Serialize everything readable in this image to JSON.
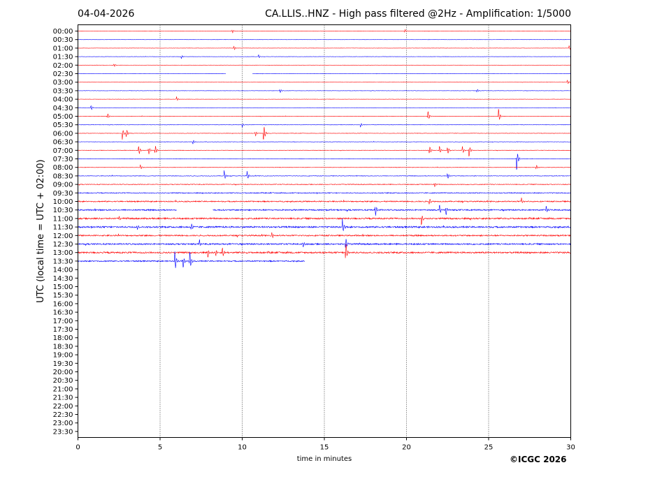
{
  "header": {
    "date": "04-04-2026",
    "title": "CA.LLIS..HNZ - High pass filtered @2Hz - Amplification: 1/5000"
  },
  "copyright": "©ICGC 2026",
  "colors": {
    "red": "#ff0000",
    "blue": "#0000ff",
    "grid": "#000000"
  },
  "chart_data": {
    "type": "line",
    "title": "CA.LLIS..HNZ - High pass filtered @2Hz - Amplification: 1/5000",
    "xlabel": "time in minutes",
    "ylabel": "UTC (local time = UTC + 02:00)",
    "xlim": [
      0,
      30
    ],
    "x_ticks": [
      0,
      5,
      10,
      15,
      20,
      25,
      30
    ],
    "x_gridlines": [
      5,
      10,
      15,
      20,
      25
    ],
    "row_labels": [
      "00:00",
      "00:30",
      "01:00",
      "01:30",
      "02:00",
      "02:30",
      "03:00",
      "03:30",
      "04:00",
      "04:30",
      "05:00",
      "05:30",
      "06:00",
      "06:30",
      "07:00",
      "07:30",
      "08:00",
      "08:30",
      "09:00",
      "09:30",
      "10:00",
      "10:30",
      "11:00",
      "11:30",
      "12:00",
      "12:30",
      "13:00",
      "13:30",
      "14:00",
      "14:30",
      "15:00",
      "15:30",
      "16:00",
      "16:30",
      "17:00",
      "17:30",
      "18:00",
      "18:30",
      "19:00",
      "19:30",
      "20:00",
      "20:30",
      "21:00",
      "21:30",
      "22:00",
      "22:30",
      "23:00",
      "23:30"
    ],
    "recorded_rows": 28,
    "last_row_end_minute": 13.8,
    "gaps": [
      {
        "row": "02:30",
        "from_minute": 9.0,
        "to_minute": 10.6
      },
      {
        "row": "10:30",
        "from_minute": 6.0,
        "to_minute": 8.2
      }
    ],
    "row_noise": [
      0.3,
      0.3,
      0.3,
      0.3,
      0.3,
      0.3,
      0.3,
      0.35,
      0.3,
      0.3,
      0.4,
      0.4,
      0.45,
      0.4,
      0.5,
      0.4,
      0.5,
      0.6,
      0.8,
      1.0,
      1.3,
      1.5,
      1.7,
      1.8,
      1.5,
      1.6,
      1.8,
      1.4
    ],
    "events": [
      {
        "row": "00:00",
        "minute": 9.4,
        "amp": 0.25
      },
      {
        "row": "00:00",
        "minute": 19.9,
        "amp": 0.25
      },
      {
        "row": "01:00",
        "minute": 9.5,
        "amp": 0.3
      },
      {
        "row": "01:00",
        "minute": 29.9,
        "amp": 0.3
      },
      {
        "row": "01:30",
        "minute": 6.3,
        "amp": 0.25
      },
      {
        "row": "01:30",
        "minute": 11.0,
        "amp": 0.25
      },
      {
        "row": "02:00",
        "minute": 2.2,
        "amp": 0.25
      },
      {
        "row": "03:00",
        "minute": 29.8,
        "amp": 0.3
      },
      {
        "row": "03:30",
        "minute": 12.3,
        "amp": 0.3
      },
      {
        "row": "03:30",
        "minute": 24.3,
        "amp": 0.25
      },
      {
        "row": "04:00",
        "minute": 6.0,
        "amp": 0.3
      },
      {
        "row": "04:30",
        "minute": 0.8,
        "amp": 0.35
      },
      {
        "row": "05:00",
        "minute": 1.8,
        "amp": 0.4
      },
      {
        "row": "05:00",
        "minute": 21.3,
        "amp": 0.75
      },
      {
        "row": "05:00",
        "minute": 25.6,
        "amp": 1.0
      },
      {
        "row": "05:30",
        "minute": 10.0,
        "amp": 0.3
      },
      {
        "row": "05:30",
        "minute": 17.2,
        "amp": 0.3
      },
      {
        "row": "06:00",
        "minute": 2.7,
        "amp": 0.75
      },
      {
        "row": "06:00",
        "minute": 2.95,
        "amp": 0.6
      },
      {
        "row": "06:00",
        "minute": 11.3,
        "amp": 1.3
      },
      {
        "row": "06:00",
        "minute": 10.8,
        "amp": 0.4
      },
      {
        "row": "06:30",
        "minute": 7.0,
        "amp": 0.3
      },
      {
        "row": "07:00",
        "minute": 3.7,
        "amp": 0.7
      },
      {
        "row": "07:00",
        "minute": 4.3,
        "amp": 0.6
      },
      {
        "row": "07:00",
        "minute": 4.7,
        "amp": 0.7
      },
      {
        "row": "07:00",
        "minute": 21.4,
        "amp": 0.65
      },
      {
        "row": "07:00",
        "minute": 22.0,
        "amp": 0.6
      },
      {
        "row": "07:00",
        "minute": 22.5,
        "amp": 0.6
      },
      {
        "row": "07:00",
        "minute": 23.4,
        "amp": 0.5
      },
      {
        "row": "07:00",
        "minute": 23.8,
        "amp": 0.9
      },
      {
        "row": "07:30",
        "minute": 26.7,
        "amp": 1.6
      },
      {
        "row": "08:00",
        "minute": 3.8,
        "amp": 0.3
      },
      {
        "row": "08:00",
        "minute": 27.9,
        "amp": 0.35
      },
      {
        "row": "08:30",
        "minute": 8.9,
        "amp": 0.65
      },
      {
        "row": "08:30",
        "minute": 10.3,
        "amp": 0.55
      },
      {
        "row": "08:30",
        "minute": 22.5,
        "amp": 0.45
      },
      {
        "row": "09:00",
        "minute": 21.7,
        "amp": 0.4
      },
      {
        "row": "10:00",
        "minute": 21.4,
        "amp": 0.55
      },
      {
        "row": "10:00",
        "minute": 27.0,
        "amp": 0.4
      },
      {
        "row": "10:30",
        "minute": 18.1,
        "amp": 0.9
      },
      {
        "row": "10:30",
        "minute": 22.0,
        "amp": 0.7
      },
      {
        "row": "10:30",
        "minute": 22.4,
        "amp": 0.8
      },
      {
        "row": "10:30",
        "minute": 28.5,
        "amp": 0.5
      },
      {
        "row": "11:00",
        "minute": 20.9,
        "amp": 0.9
      },
      {
        "row": "11:00",
        "minute": 2.5,
        "amp": 0.4
      },
      {
        "row": "11:30",
        "minute": 6.9,
        "amp": 0.5
      },
      {
        "row": "11:30",
        "minute": 3.6,
        "amp": 0.4
      },
      {
        "row": "11:30",
        "minute": 16.1,
        "amp": 1.0
      },
      {
        "row": "12:00",
        "minute": 11.8,
        "amp": 0.4
      },
      {
        "row": "12:30",
        "minute": 7.4,
        "amp": 0.5
      },
      {
        "row": "12:30",
        "minute": 13.7,
        "amp": 0.5
      },
      {
        "row": "12:30",
        "minute": 16.3,
        "amp": 0.8
      },
      {
        "row": "13:00",
        "minute": 7.9,
        "amp": 0.7
      },
      {
        "row": "13:00",
        "minute": 8.4,
        "amp": 0.5
      },
      {
        "row": "13:00",
        "minute": 8.8,
        "amp": 0.7
      },
      {
        "row": "13:00",
        "minute": 16.3,
        "amp": 1.4
      },
      {
        "row": "13:30",
        "minute": 5.9,
        "amp": 1.5
      },
      {
        "row": "13:30",
        "minute": 6.4,
        "amp": 0.9
      },
      {
        "row": "13:30",
        "minute": 6.8,
        "amp": 1.5
      }
    ]
  }
}
